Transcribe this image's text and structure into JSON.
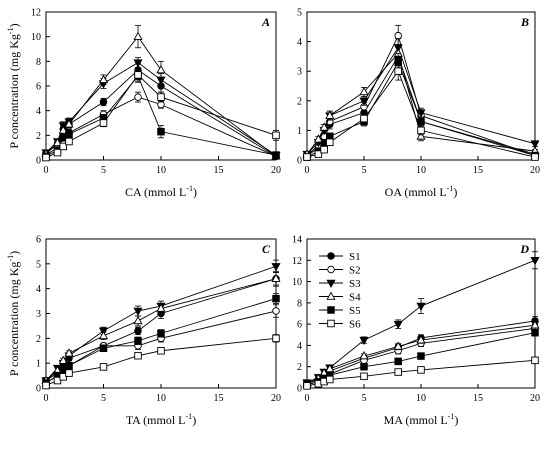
{
  "chart_data": [
    {
      "type": "line",
      "panel_label": "A",
      "xlabel": "CA (mmol L",
      "xlabel_sup": "-1",
      "xlabel_close": ")",
      "ylabel": "P concentration (mg Kg",
      "ylabel_sup": "-1",
      "ylabel_close": ")",
      "xlim": [
        0,
        20
      ],
      "ylim": [
        0,
        12
      ],
      "xticks": [
        0,
        5,
        10,
        15,
        20
      ],
      "yticks": [
        0,
        2,
        4,
        6,
        8,
        10,
        12
      ],
      "x": [
        0,
        1,
        1.5,
        2,
        5,
        8,
        10,
        20
      ],
      "series": [
        {
          "name": "S1",
          "marker": "circle-filled",
          "values": [
            0.5,
            1.3,
            2.5,
            2.9,
            4.7,
            7.3,
            6.0,
            0.3
          ],
          "err": [
            0.2,
            0.2,
            0.3,
            0.3,
            0.3,
            0.5,
            0.5,
            0.1
          ]
        },
        {
          "name": "S2",
          "marker": "circle-open",
          "values": [
            0.4,
            1.0,
            2.0,
            2.2,
            3.7,
            5.1,
            4.5,
            0.3
          ],
          "err": [
            0.1,
            0.2,
            0.3,
            0.3,
            0.3,
            0.4,
            0.3,
            0.1
          ]
        },
        {
          "name": "S3",
          "marker": "triangle-down",
          "values": [
            0.6,
            1.5,
            2.8,
            3.1,
            6.2,
            7.9,
            6.5,
            0.4
          ],
          "err": [
            0.2,
            0.2,
            0.3,
            0.3,
            0.4,
            0.4,
            0.5,
            0.1
          ]
        },
        {
          "name": "S4",
          "marker": "triangle-up-open",
          "values": [
            0.5,
            1.4,
            2.4,
            2.9,
            6.5,
            10.0,
            7.3,
            0.3
          ],
          "err": [
            0.2,
            0.2,
            0.3,
            0.3,
            0.4,
            0.9,
            0.7,
            0.1
          ]
        },
        {
          "name": "S5",
          "marker": "square-filled",
          "values": [
            0.3,
            0.8,
            1.8,
            2.1,
            3.4,
            6.8,
            2.3,
            0.4
          ],
          "err": [
            0.1,
            0.2,
            0.2,
            0.3,
            0.3,
            0.5,
            0.5,
            0.1
          ]
        },
        {
          "name": "S6",
          "marker": "square-open",
          "values": [
            0.2,
            0.6,
            1.1,
            1.5,
            3.0,
            6.9,
            5.1,
            2.0
          ],
          "err": [
            0.1,
            0.1,
            0.2,
            0.2,
            0.3,
            0.5,
            0.4,
            0.4
          ]
        }
      ]
    },
    {
      "type": "line",
      "panel_label": "B",
      "xlabel": "OA (mmol L",
      "xlabel_sup": "-1",
      "xlabel_close": ")",
      "ylabel": "",
      "xlim": [
        0,
        20
      ],
      "ylim": [
        0,
        5
      ],
      "xticks": [
        0,
        5,
        10,
        15,
        20
      ],
      "yticks": [
        0,
        1,
        2,
        3,
        4,
        5
      ],
      "x": [
        0,
        1,
        1.5,
        2,
        5,
        8,
        10,
        20
      ],
      "series": [
        {
          "name": "S1",
          "marker": "circle-filled",
          "values": [
            0.15,
            0.4,
            0.7,
            1.2,
            1.6,
            3.5,
            1.3,
            0.2
          ],
          "err": [
            0.05,
            0.1,
            0.1,
            0.15,
            0.15,
            0.3,
            0.15,
            0.05
          ]
        },
        {
          "name": "S2",
          "marker": "circle-open",
          "values": [
            0.15,
            0.5,
            0.8,
            1.3,
            1.8,
            4.2,
            1.5,
            0.15
          ],
          "err": [
            0.05,
            0.1,
            0.1,
            0.15,
            0.15,
            0.35,
            0.15,
            0.05
          ]
        },
        {
          "name": "S3",
          "marker": "triangle-down",
          "values": [
            0.2,
            0.6,
            1.0,
            1.5,
            2.0,
            3.8,
            1.6,
            0.55
          ],
          "err": [
            0.05,
            0.1,
            0.1,
            0.15,
            0.15,
            0.3,
            0.15,
            0.1
          ]
        },
        {
          "name": "S4",
          "marker": "triangle-up-open",
          "values": [
            0.2,
            0.7,
            1.1,
            1.5,
            2.3,
            3.6,
            0.8,
            0.3
          ],
          "err": [
            0.05,
            0.1,
            0.1,
            0.15,
            0.15,
            0.3,
            0.15,
            0.05
          ]
        },
        {
          "name": "S5",
          "marker": "square-filled",
          "values": [
            0.1,
            0.3,
            0.5,
            0.8,
            1.3,
            3.3,
            1.3,
            0.15
          ],
          "err": [
            0.05,
            0.1,
            0.1,
            0.1,
            0.15,
            0.3,
            0.15,
            0.05
          ]
        },
        {
          "name": "S6",
          "marker": "square-open",
          "values": [
            0.1,
            0.2,
            0.35,
            0.6,
            1.4,
            3.0,
            1.0,
            0.1
          ],
          "err": [
            0.05,
            0.05,
            0.1,
            0.1,
            0.15,
            0.3,
            0.15,
            0.05
          ]
        }
      ]
    },
    {
      "type": "line",
      "panel_label": "C",
      "xlabel": "TA (mmol L",
      "xlabel_sup": "-1",
      "xlabel_close": ")",
      "ylabel": "P concentration (mg Kg",
      "ylabel_sup": "-1",
      "ylabel_close": ")",
      "xlim": [
        0,
        20
      ],
      "ylim": [
        0,
        6
      ],
      "xticks": [
        0,
        5,
        10,
        15,
        20
      ],
      "yticks": [
        0,
        1,
        2,
        3,
        4,
        5,
        6
      ],
      "x": [
        0,
        1,
        1.5,
        2,
        5,
        8,
        10,
        20
      ],
      "series": [
        {
          "name": "S1",
          "marker": "circle-filled",
          "values": [
            0.3,
            0.6,
            0.9,
            1.2,
            1.7,
            2.3,
            3.0,
            4.4
          ],
          "err": [
            0.05,
            0.1,
            0.1,
            0.1,
            0.1,
            0.15,
            0.2,
            0.25
          ]
        },
        {
          "name": "S2",
          "marker": "circle-open",
          "values": [
            0.2,
            0.5,
            0.7,
            0.9,
            1.7,
            1.7,
            2.0,
            3.1
          ],
          "err": [
            0.05,
            0.1,
            0.1,
            0.1,
            0.1,
            0.15,
            0.15,
            0.25
          ]
        },
        {
          "name": "S3",
          "marker": "triangle-down",
          "values": [
            0.3,
            0.8,
            1.0,
            1.3,
            2.3,
            3.1,
            3.3,
            4.9
          ],
          "err": [
            0.05,
            0.1,
            0.1,
            0.1,
            0.15,
            0.2,
            0.2,
            0.25
          ]
        },
        {
          "name": "S4",
          "marker": "triangle-up-open",
          "values": [
            0.3,
            0.7,
            1.1,
            1.4,
            2.1,
            2.7,
            3.2,
            4.4
          ],
          "err": [
            0.05,
            0.1,
            0.1,
            0.1,
            0.15,
            0.2,
            0.2,
            0.3
          ]
        },
        {
          "name": "S5",
          "marker": "square-filled",
          "values": [
            0.2,
            0.5,
            0.7,
            0.9,
            1.6,
            1.9,
            2.2,
            3.6
          ],
          "err": [
            0.05,
            0.1,
            0.1,
            0.1,
            0.1,
            0.15,
            0.15,
            0.2
          ]
        },
        {
          "name": "S6",
          "marker": "square-open",
          "values": [
            0.1,
            0.3,
            0.45,
            0.6,
            0.85,
            1.3,
            1.5,
            2.0
          ],
          "err": [
            0.05,
            0.05,
            0.05,
            0.1,
            0.1,
            0.1,
            0.1,
            0.15
          ]
        }
      ]
    },
    {
      "type": "line",
      "panel_label": "D",
      "xlabel": "MA (mmol L",
      "xlabel_sup": "-1",
      "xlabel_close": ")",
      "ylabel": "",
      "xlim": [
        0,
        20
      ],
      "ylim": [
        0,
        14
      ],
      "xticks": [
        0,
        5,
        10,
        15,
        20
      ],
      "yticks": [
        0,
        2,
        4,
        6,
        8,
        10,
        12,
        14
      ],
      "x": [
        0,
        1,
        1.5,
        2,
        5,
        8,
        10,
        20
      ],
      "legend": {
        "position": "upper-left",
        "entries": [
          "S1",
          "S2",
          "S3",
          "S4",
          "S5",
          "S6"
        ]
      },
      "series": [
        {
          "name": "S1",
          "marker": "circle-filled",
          "values": [
            0.4,
            0.8,
            1.2,
            1.6,
            2.8,
            3.8,
            4.7,
            6.3
          ],
          "err": [
            0.1,
            0.1,
            0.15,
            0.15,
            0.2,
            0.3,
            0.3,
            0.4
          ]
        },
        {
          "name": "S2",
          "marker": "circle-open",
          "values": [
            0.3,
            0.6,
            1.0,
            1.3,
            2.6,
            3.5,
            4.2,
            5.6
          ],
          "err": [
            0.1,
            0.1,
            0.15,
            0.15,
            0.2,
            0.3,
            0.3,
            0.4
          ]
        },
        {
          "name": "S3",
          "marker": "triangle-down",
          "values": [
            0.5,
            1.0,
            1.5,
            1.9,
            4.5,
            6.0,
            7.7,
            12.0
          ],
          "err": [
            0.1,
            0.15,
            0.15,
            0.2,
            0.3,
            0.4,
            0.7,
            0.8
          ]
        },
        {
          "name": "S4",
          "marker": "triangle-up-open",
          "values": [
            0.4,
            0.9,
            1.4,
            1.8,
            3.0,
            3.9,
            4.5,
            5.9
          ],
          "err": [
            0.1,
            0.1,
            0.15,
            0.15,
            0.2,
            0.3,
            0.3,
            0.4
          ]
        },
        {
          "name": "S5",
          "marker": "square-filled",
          "values": [
            0.3,
            0.6,
            0.9,
            1.2,
            2.0,
            2.5,
            3.0,
            5.2
          ],
          "err": [
            0.1,
            0.1,
            0.1,
            0.15,
            0.15,
            0.2,
            0.2,
            0.3
          ]
        },
        {
          "name": "S6",
          "marker": "square-open",
          "values": [
            0.2,
            0.4,
            0.6,
            0.8,
            1.1,
            1.5,
            1.7,
            2.6
          ],
          "err": [
            0.05,
            0.1,
            0.1,
            0.1,
            0.1,
            0.15,
            0.15,
            0.2
          ]
        }
      ]
    }
  ]
}
